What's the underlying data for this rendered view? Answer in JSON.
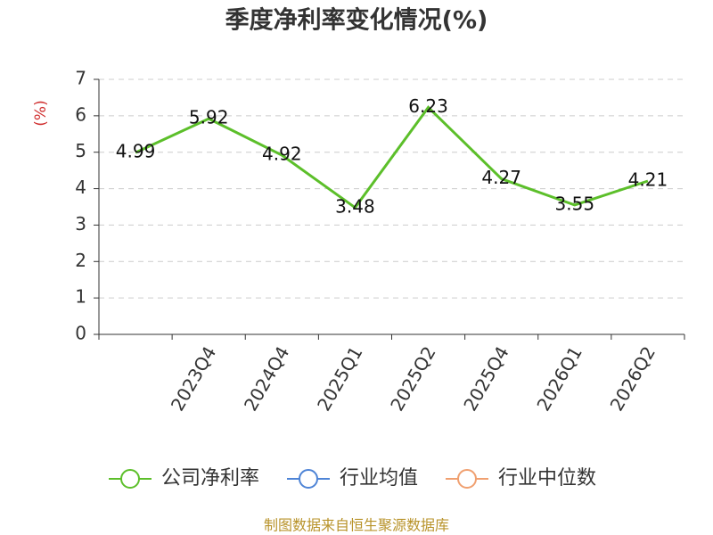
{
  "chart_data": {
    "type": "line",
    "title": "季度净利率变化情况(%)",
    "y_label": "(%)",
    "categories": [
      null,
      "2023Q4",
      "2024Q4",
      "2025Q1",
      "2025Q2",
      "2025Q4",
      "2026Q1",
      "2026Q2"
    ],
    "series": [
      {
        "name": "公司净利率",
        "color": "#5cbf2a",
        "values": [
          4.99,
          5.92,
          4.92,
          3.48,
          6.23,
          4.27,
          3.55,
          4.21
        ]
      },
      {
        "name": "行业均值",
        "color": "#4e84d6",
        "values": [
          null,
          null,
          null,
          null,
          null,
          null,
          null,
          null
        ]
      },
      {
        "name": "行业中位数",
        "color": "#f0a070",
        "values": [
          null,
          null,
          null,
          null,
          null,
          null,
          null,
          null
        ]
      }
    ],
    "ylim": [
      0,
      7
    ],
    "yticks": [
      0,
      1,
      2,
      3,
      4,
      5,
      6,
      7
    ],
    "grid": true,
    "source": "制图数据来自恒生聚源数据库"
  }
}
